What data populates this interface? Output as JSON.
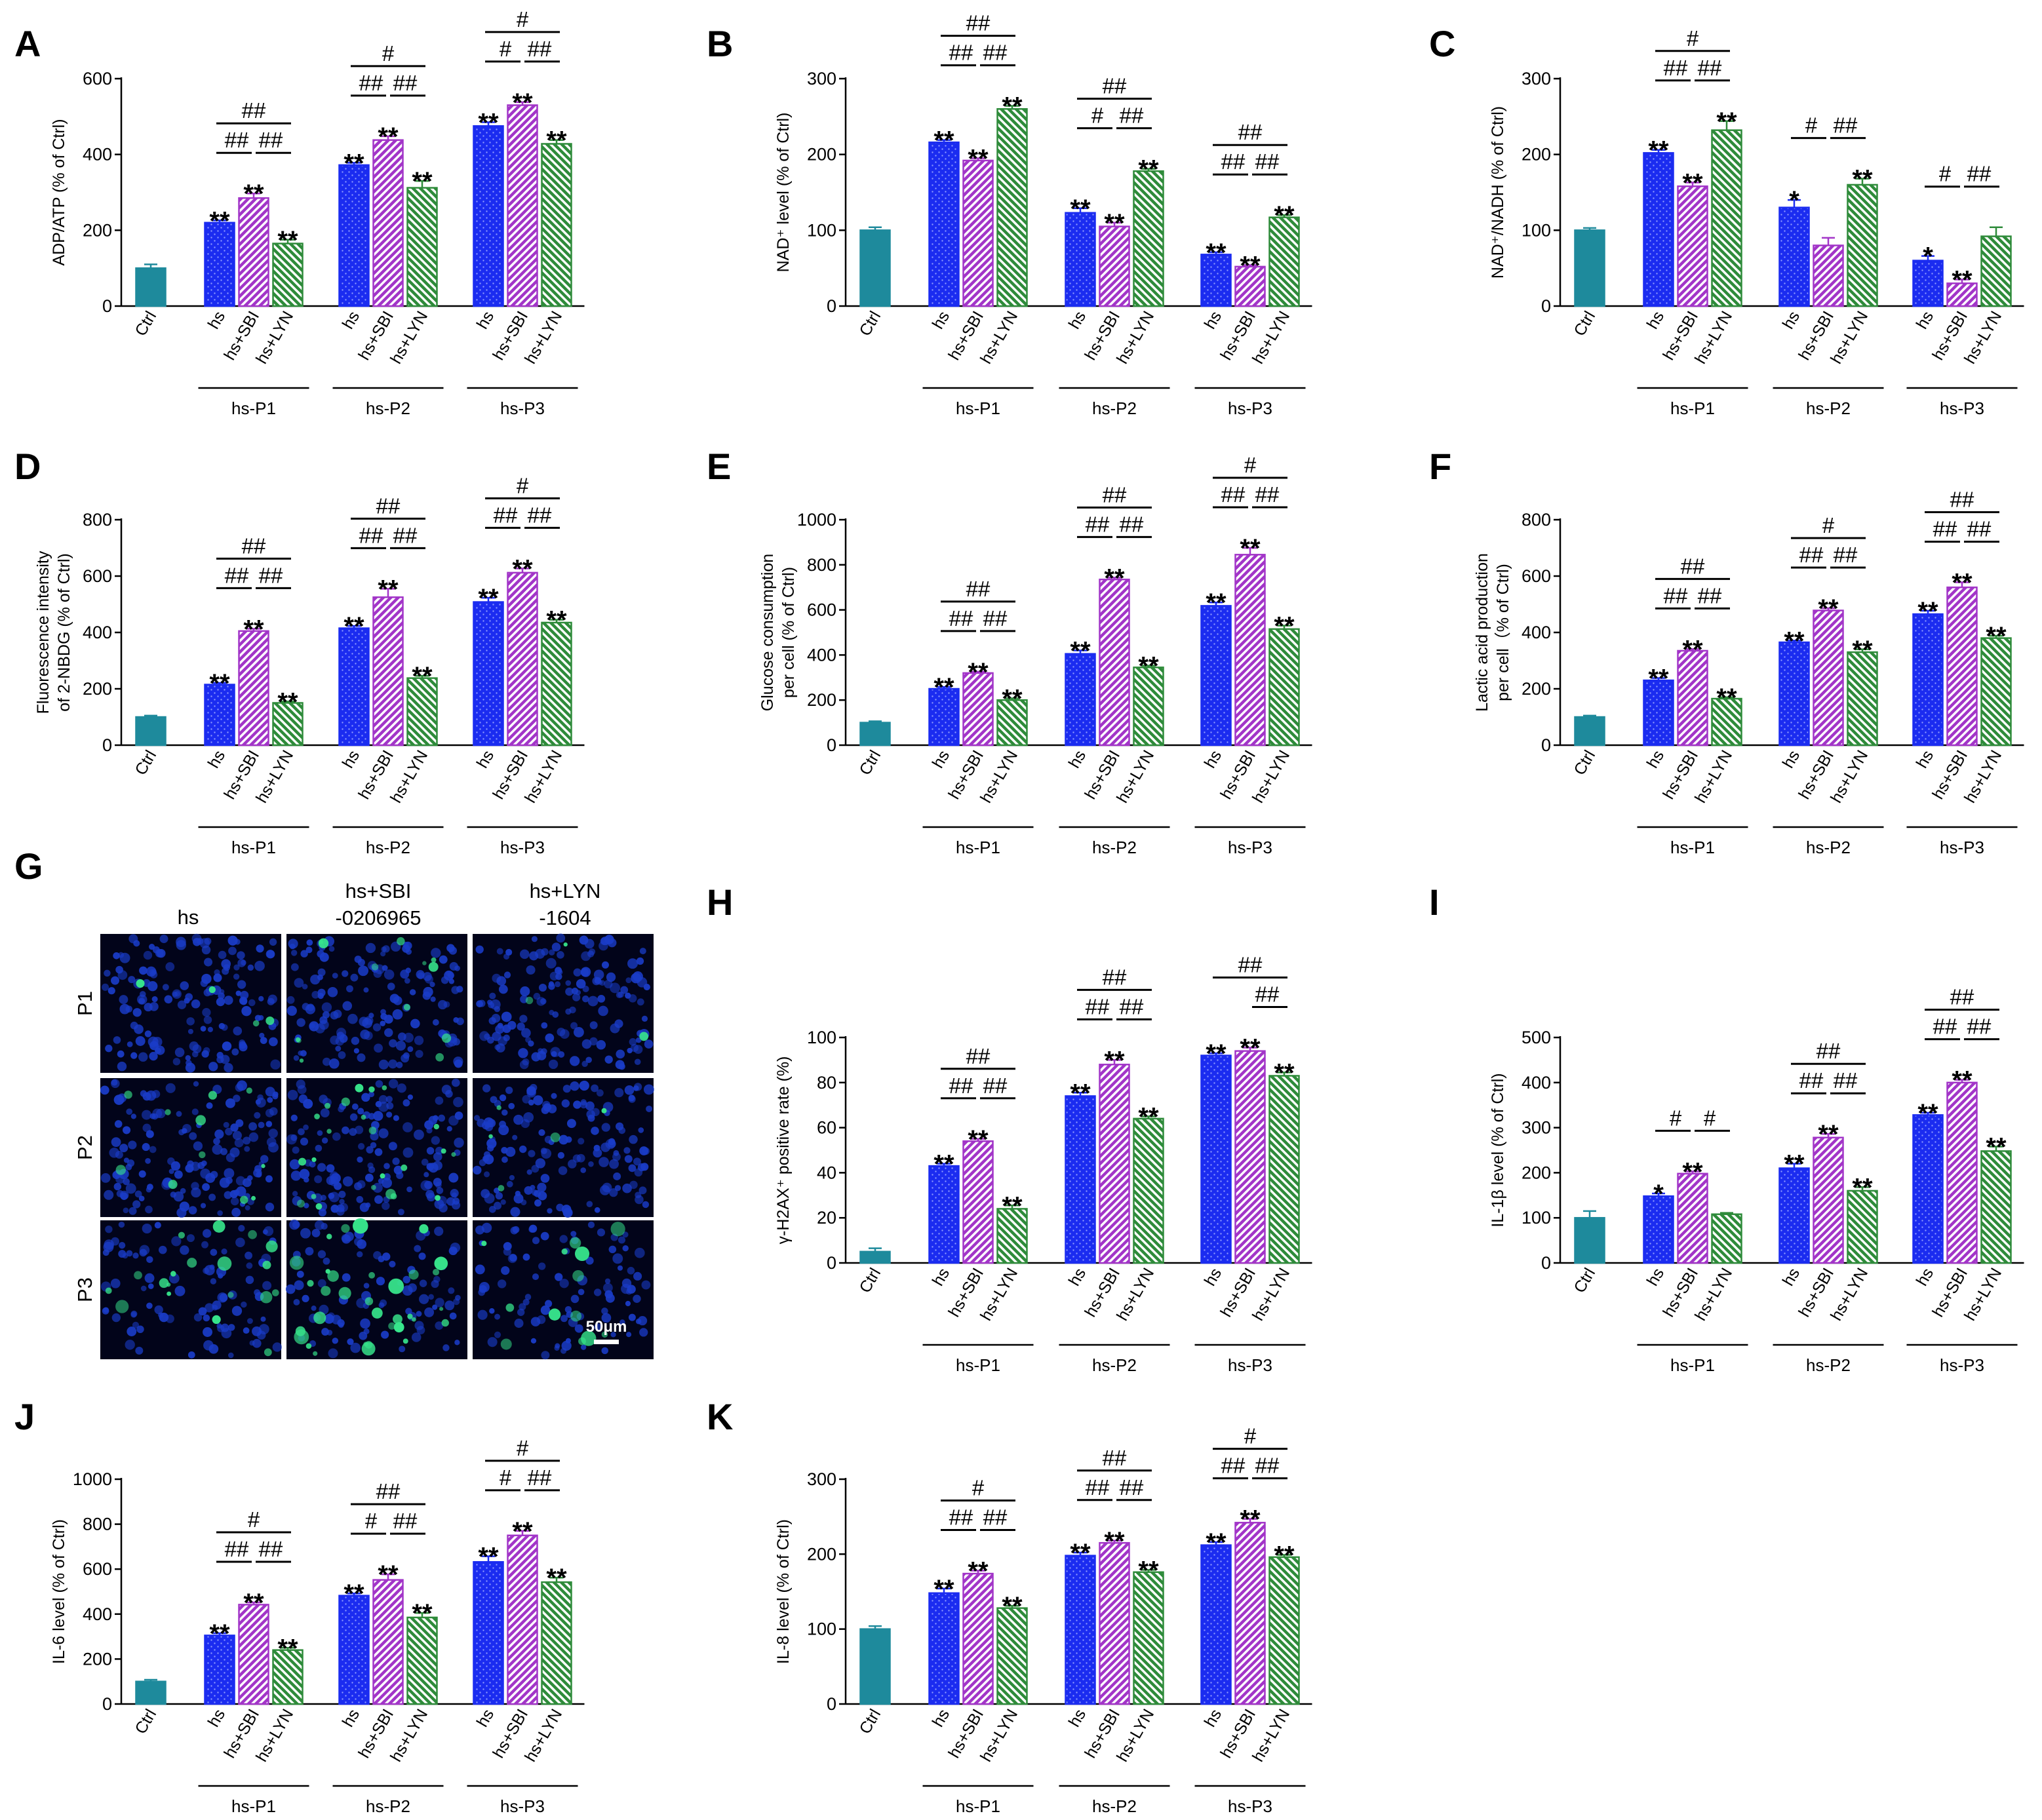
{
  "colors": {
    "ctrl": "#1e8a9c",
    "hs": "#1b2cf0",
    "sbi": "#a235c8",
    "lyn": "#2e8b3a",
    "nucleus": "#1a3cc8",
    "green_cell": "#37e68c"
  },
  "chart_data": [
    {
      "type": "bar",
      "panel": "A",
      "ylabel": "ADP/ATP (% of Ctrl)",
      "ylim": [
        0,
        600
      ],
      "yticks": [
        0,
        200,
        400,
        600
      ],
      "categories": [
        "Ctrl",
        "hs",
        "hs+SBI",
        "hs+LYN",
        "hs",
        "hs+SBI",
        "hs+LYN",
        "hs",
        "hs+SBI",
        "hs+LYN"
      ],
      "groups": [
        "hs-P1",
        "hs-P2",
        "hs-P3"
      ],
      "values": [
        100,
        220,
        285,
        165,
        372,
        438,
        312,
        475,
        530,
        428
      ],
      "errors": [
        10,
        6,
        12,
        10,
        6,
        10,
        18,
        10,
        8,
        10
      ],
      "stars": [
        "",
        "**",
        "**",
        "**",
        "**",
        "**",
        "**",
        "**",
        "**",
        "**"
      ],
      "hashes": [
        [
          "##",
          "##",
          "##"
        ],
        [
          "#",
          "##",
          "##"
        ],
        [
          "#",
          "#",
          "##"
        ]
      ]
    },
    {
      "type": "bar",
      "panel": "B",
      "ylabel": "NAD⁺ level (% of Ctrl)",
      "ylim": [
        0,
        300
      ],
      "yticks": [
        0,
        100,
        200,
        300
      ],
      "categories": [
        "Ctrl",
        "hs",
        "hs+SBI",
        "hs+LYN",
        "hs",
        "hs+SBI",
        "hs+LYN",
        "hs",
        "hs+SBI",
        "hs+LYN"
      ],
      "groups": [
        "hs-P1",
        "hs-P2",
        "hs-P3"
      ],
      "values": [
        100,
        216,
        192,
        260,
        123,
        105,
        178,
        68,
        52,
        117
      ],
      "errors": [
        4,
        3,
        3,
        4,
        6,
        5,
        3,
        3,
        2,
        3
      ],
      "stars": [
        "",
        "**",
        "**",
        "**",
        "**",
        "**",
        "**",
        "**",
        "**",
        "**"
      ],
      "hashes": [
        [
          "##",
          "##",
          "##"
        ],
        [
          "##",
          "#",
          "##"
        ],
        [
          "##",
          "##",
          "##"
        ]
      ]
    },
    {
      "type": "bar",
      "panel": "C",
      "ylabel": "NAD⁺/NADH (% of Ctrl)",
      "ylim": [
        0,
        300
      ],
      "yticks": [
        0,
        100,
        200,
        300
      ],
      "categories": [
        "Ctrl",
        "hs",
        "hs+SBI",
        "hs+LYN",
        "hs",
        "hs+SBI",
        "hs+LYN",
        "hs",
        "hs+SBI",
        "hs+LYN"
      ],
      "groups": [
        "hs-P1",
        "hs-P2",
        "hs-P3"
      ],
      "values": [
        100,
        202,
        158,
        232,
        130,
        80,
        160,
        60,
        30,
        92
      ],
      "errors": [
        3,
        4,
        5,
        12,
        10,
        10,
        8,
        6,
        5,
        12
      ],
      "stars": [
        "",
        "**",
        "**",
        "**",
        "*",
        "",
        "**",
        "*",
        "**",
        ""
      ],
      "hashes": [
        [
          "#",
          "##",
          "##"
        ],
        [
          "",
          "#",
          "##"
        ],
        [
          "",
          "#",
          "##"
        ]
      ]
    },
    {
      "type": "bar",
      "panel": "D",
      "ylabel": "Fluorescence intensity of 2-NBDG (% of Ctrl)",
      "ylim": [
        0,
        800
      ],
      "yticks": [
        0,
        200,
        400,
        600,
        800
      ],
      "categories": [
        "Ctrl",
        "hs",
        "hs+SBI",
        "hs+LYN",
        "hs",
        "hs+SBI",
        "hs+LYN",
        "hs",
        "hs+SBI",
        "hs+LYN"
      ],
      "groups": [
        "hs-P1",
        "hs-P2",
        "hs-P3"
      ],
      "values": [
        100,
        215,
        405,
        150,
        415,
        525,
        238,
        508,
        612,
        435
      ],
      "errors": [
        5,
        6,
        8,
        5,
        8,
        30,
        8,
        15,
        15,
        10
      ],
      "stars": [
        "",
        "**",
        "**",
        "**",
        "**",
        "**",
        "**",
        "**",
        "**",
        "**"
      ],
      "hashes": [
        [
          "##",
          "##",
          "##"
        ],
        [
          "##",
          "##",
          "##"
        ],
        [
          "#",
          "##",
          "##"
        ]
      ]
    },
    {
      "type": "bar",
      "panel": "E",
      "ylabel": "Glucose consumption per cell (% of Ctrl)",
      "ylim": [
        0,
        1000
      ],
      "yticks": [
        0,
        200,
        400,
        600,
        800,
        1000
      ],
      "categories": [
        "Ctrl",
        "hs",
        "hs+SBI",
        "hs+LYN",
        "hs",
        "hs+SBI",
        "hs+LYN",
        "hs",
        "hs+SBI",
        "hs+LYN"
      ],
      "groups": [
        "hs-P1",
        "hs-P2",
        "hs-P3"
      ],
      "values": [
        100,
        250,
        320,
        200,
        405,
        735,
        345,
        618,
        845,
        515
      ],
      "errors": [
        6,
        8,
        6,
        8,
        15,
        8,
        8,
        15,
        30,
        15
      ],
      "stars": [
        "",
        "**",
        "**",
        "**",
        "**",
        "**",
        "**",
        "**",
        "**",
        "**"
      ],
      "hashes": [
        [
          "##",
          "##",
          "##"
        ],
        [
          "##",
          "##",
          "##"
        ],
        [
          "#",
          "##",
          "##"
        ]
      ]
    },
    {
      "type": "bar",
      "panel": "F",
      "ylabel": "Lactic acid production per cell（% of Ctrl)",
      "ylim": [
        0,
        800
      ],
      "yticks": [
        0,
        200,
        400,
        600,
        800
      ],
      "categories": [
        "Ctrl",
        "hs",
        "hs+SBI",
        "hs+LYN",
        "hs",
        "hs+SBI",
        "hs+LYN",
        "hs",
        "hs+SBI",
        "hs+LYN"
      ],
      "groups": [
        "hs-P1",
        "hs-P2",
        "hs-P3"
      ],
      "values": [
        100,
        230,
        335,
        165,
        365,
        478,
        330,
        465,
        560,
        380
      ],
      "errors": [
        5,
        8,
        6,
        5,
        6,
        8,
        10,
        12,
        18,
        8
      ],
      "stars": [
        "",
        "**",
        "**",
        "**",
        "**",
        "**",
        "**",
        "**",
        "**",
        "**"
      ],
      "hashes": [
        [
          "##",
          "##",
          "##"
        ],
        [
          "#",
          "##",
          "##"
        ],
        [
          "##",
          "##",
          "##"
        ]
      ]
    },
    {
      "type": "bar",
      "panel": "H",
      "ylabel": "γ-H2AX⁺ positive rate (%)",
      "ylim": [
        0,
        100
      ],
      "yticks": [
        0,
        20,
        40,
        60,
        80,
        100
      ],
      "categories": [
        "Ctrl",
        "hs",
        "hs+SBI",
        "hs+LYN",
        "hs",
        "hs+SBI",
        "hs+LYN",
        "hs",
        "hs+SBI",
        "hs+LYN"
      ],
      "groups": [
        "hs-P1",
        "hs-P2",
        "hs-P3"
      ],
      "values": [
        5,
        43,
        54,
        24,
        74,
        88,
        64,
        92,
        94,
        83
      ],
      "errors": [
        1.5,
        1,
        1,
        1.5,
        1.5,
        2,
        1,
        1,
        1.5,
        1.5
      ],
      "stars": [
        "",
        "**",
        "**",
        "**",
        "**",
        "**",
        "**",
        "**",
        "**",
        "**"
      ],
      "hashes": [
        [
          "##",
          "##",
          "##"
        ],
        [
          "##",
          "##",
          "##"
        ],
        [
          "##",
          "",
          "##"
        ]
      ]
    },
    {
      "type": "bar",
      "panel": "I",
      "ylabel": "IL-1β level (% of Ctrl)",
      "ylim": [
        0,
        500
      ],
      "yticks": [
        0,
        100,
        200,
        300,
        400,
        500
      ],
      "categories": [
        "Ctrl",
        "hs",
        "hs+SBI",
        "hs+LYN",
        "hs",
        "hs+SBI",
        "hs+LYN",
        "hs",
        "hs+SBI",
        "hs+LYN"
      ],
      "groups": [
        "hs-P1",
        "hs-P2",
        "hs-P3"
      ],
      "values": [
        100,
        148,
        198,
        108,
        210,
        278,
        160,
        328,
        400,
        248
      ],
      "errors": [
        15,
        6,
        5,
        3,
        10,
        8,
        8,
        5,
        6,
        10
      ],
      "stars": [
        "",
        "*",
        "**",
        "",
        "**",
        "**",
        "**",
        "**",
        "**",
        "**"
      ],
      "hashes": [
        [
          "",
          "#",
          "#"
        ],
        [
          "##",
          "##",
          "##"
        ],
        [
          "##",
          "##",
          "##"
        ]
      ]
    },
    {
      "type": "bar",
      "panel": "J",
      "ylabel": "IL-6 level (% of Ctrl)",
      "ylim": [
        0,
        1000
      ],
      "yticks": [
        0,
        200,
        400,
        600,
        800,
        1000
      ],
      "categories": [
        "Ctrl",
        "hs",
        "hs+SBI",
        "hs+LYN",
        "hs",
        "hs+SBI",
        "hs+LYN",
        "hs",
        "hs+SBI",
        "hs+LYN"
      ],
      "groups": [
        "hs-P1",
        "hs-P2",
        "hs-P3"
      ],
      "values": [
        100,
        305,
        442,
        240,
        482,
        552,
        385,
        632,
        750,
        542
      ],
      "errors": [
        8,
        10,
        10,
        10,
        10,
        25,
        20,
        25,
        20,
        20
      ],
      "stars": [
        "",
        "**",
        "**",
        "**",
        "**",
        "**",
        "**",
        "**",
        "**",
        "**"
      ],
      "hashes": [
        [
          "#",
          "##",
          "##"
        ],
        [
          "##",
          "#",
          "##"
        ],
        [
          "#",
          "#",
          "##"
        ]
      ]
    },
    {
      "type": "bar",
      "panel": "K",
      "ylabel": "IL-8 level (% of Ctrl)",
      "ylim": [
        0,
        300
      ],
      "yticks": [
        0,
        100,
        200,
        300
      ],
      "categories": [
        "Ctrl",
        "hs",
        "hs+SBI",
        "hs+LYN",
        "hs",
        "hs+SBI",
        "hs+LYN",
        "hs",
        "hs+SBI",
        "hs+LYN"
      ],
      "groups": [
        "hs-P1",
        "hs-P2",
        "hs-P3"
      ],
      "values": [
        100,
        148,
        174,
        128,
        198,
        215,
        176,
        212,
        242,
        196
      ],
      "errors": [
        4,
        6,
        4,
        3,
        4,
        3,
        3,
        4,
        5,
        3
      ],
      "stars": [
        "",
        "**",
        "**",
        "**",
        "**",
        "**",
        "**",
        "**",
        "**",
        "**"
      ],
      "hashes": [
        [
          "#",
          "##",
          "##"
        ],
        [
          "##",
          "##",
          "##"
        ],
        [
          "#",
          "##",
          "##"
        ]
      ]
    }
  ],
  "micrograph": {
    "panel": "G",
    "columns": [
      "hs",
      "hs+SBI\n-0206965",
      "hs+LYN\n-1604"
    ],
    "rows": [
      "P1",
      "P2",
      "P3"
    ],
    "scale_bar": "50μm",
    "green_intensity": [
      [
        0.06,
        0.22,
        0.05
      ],
      [
        0.18,
        0.38,
        0.08
      ],
      [
        0.32,
        0.55,
        0.22
      ]
    ]
  }
}
